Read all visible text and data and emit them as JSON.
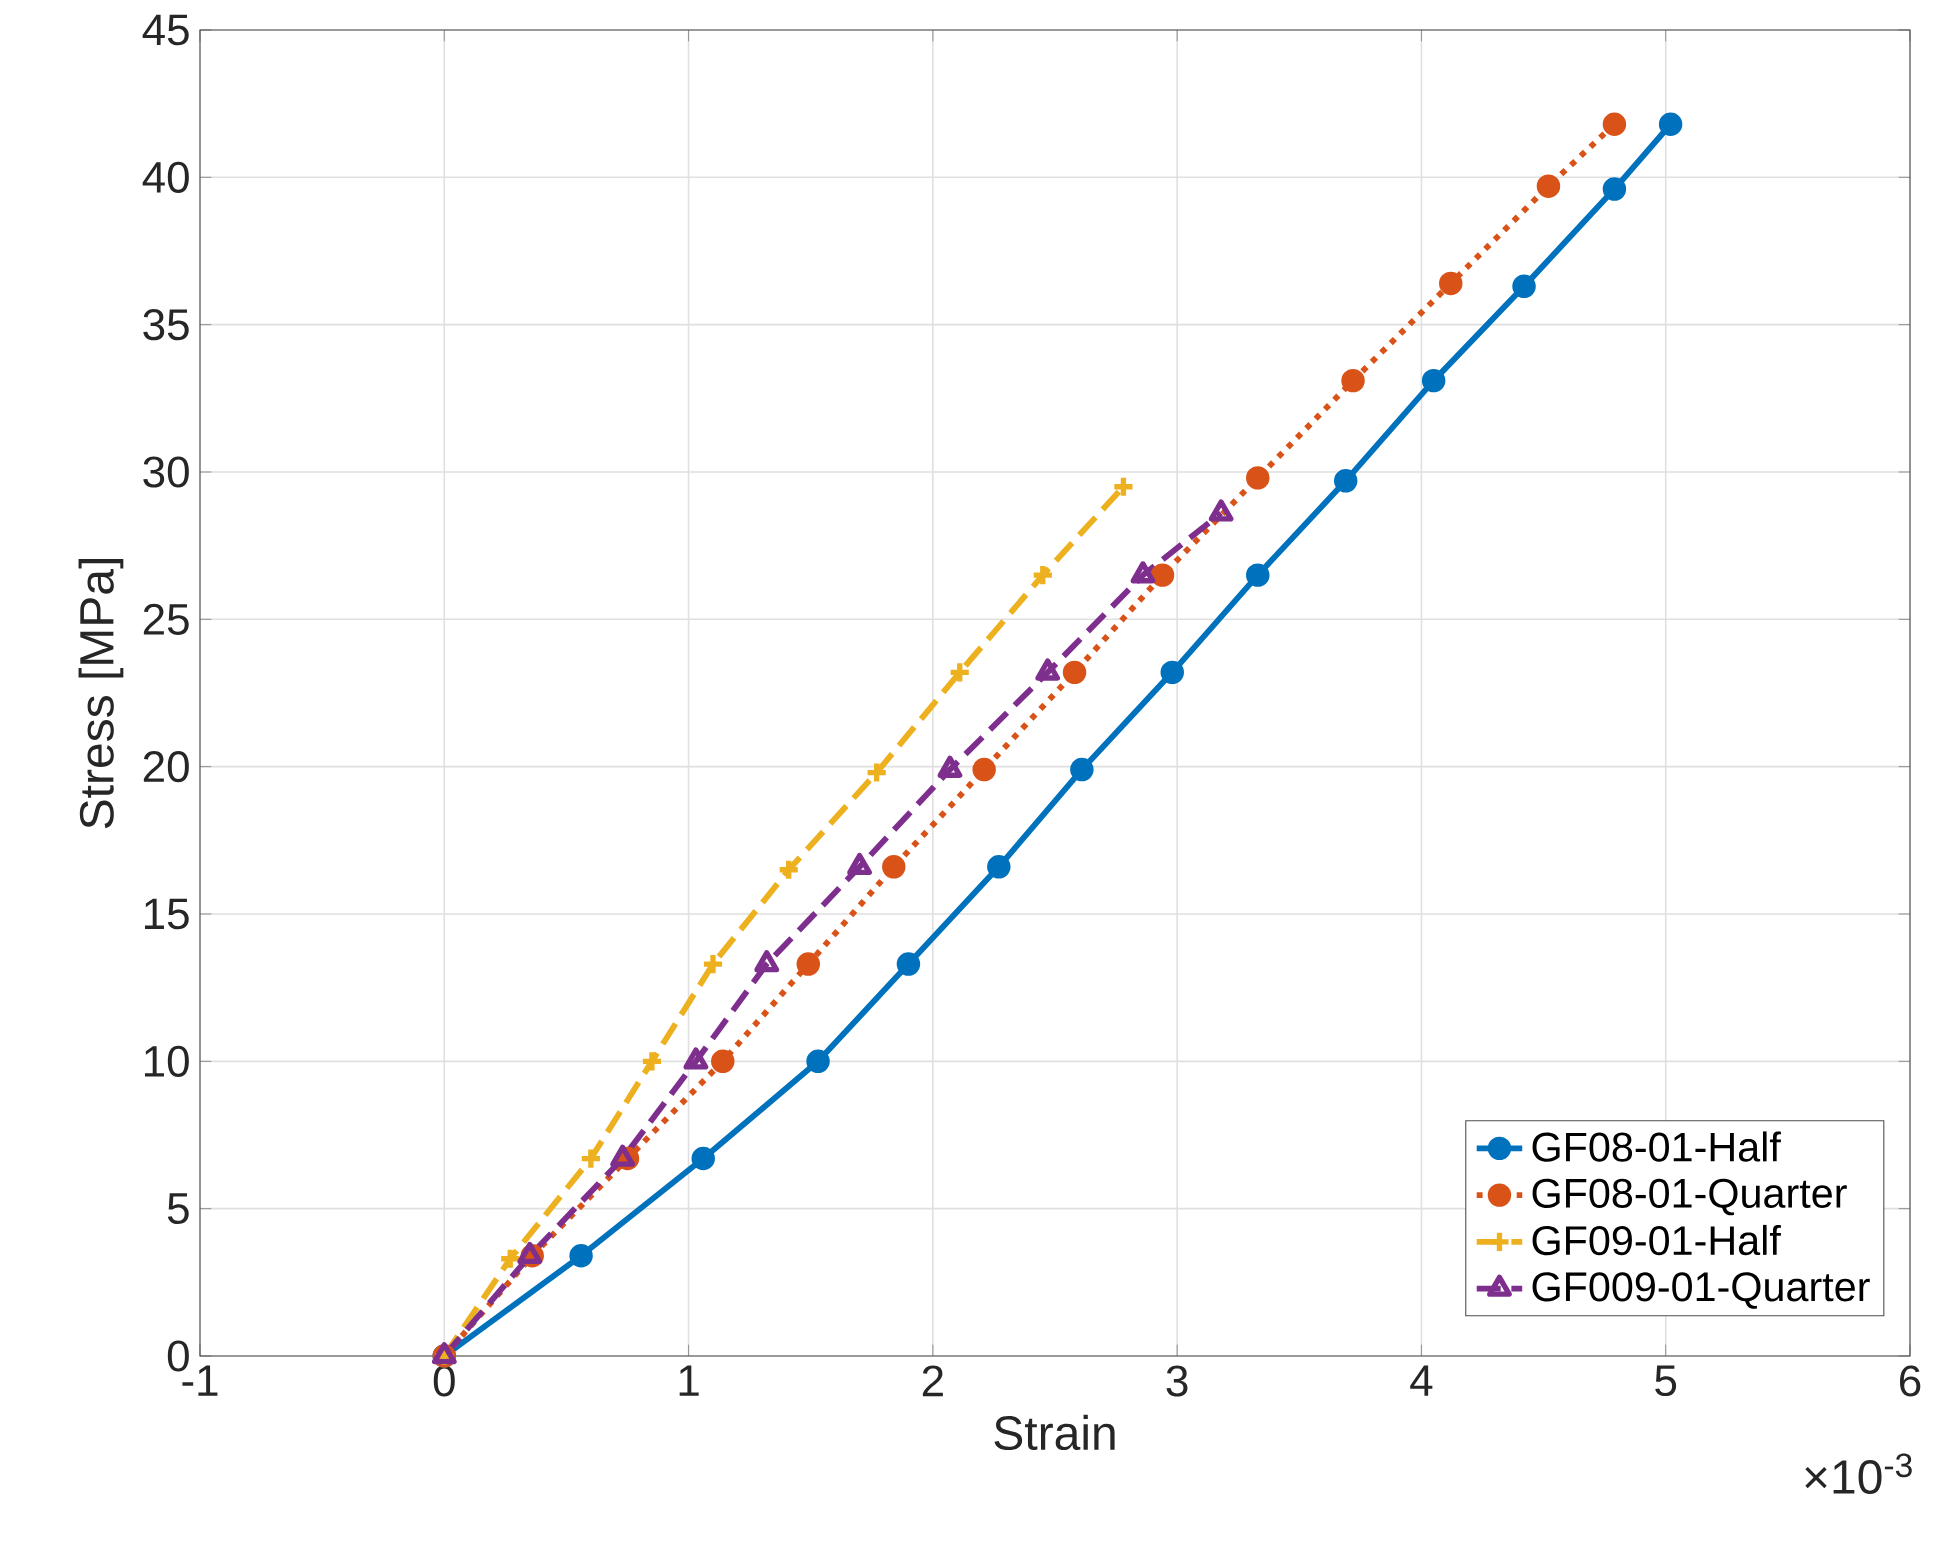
{
  "chart_data": {
    "type": "line",
    "xlabel": "Strain",
    "ylabel": "Stress [MPa]",
    "annotations": [
      "×10$^{-3}$"
    ],
    "xlim": [
      -1,
      6
    ],
    "xticks": [
      -1,
      0,
      1,
      2,
      3,
      4,
      5,
      6
    ],
    "ylim": [
      0,
      45
    ],
    "yticks": [
      0,
      5,
      10,
      15,
      20,
      25,
      30,
      35,
      40,
      45
    ],
    "grid": true,
    "legend": "bottom right",
    "series": [
      {
        "name": "GF08-01-Half",
        "color": "#0072bd",
        "marker": "circle",
        "line_style": "solid",
        "x": [
          0,
          0.56,
          1.06,
          1.53,
          1.9,
          2.27,
          2.61,
          2.98,
          3.33,
          3.69,
          4.05,
          4.42,
          4.79,
          5.02
        ],
        "values": [
          0,
          3.4,
          6.7,
          10.0,
          13.3,
          16.6,
          19.9,
          23.2,
          26.5,
          29.7,
          33.1,
          36.3,
          39.6,
          41.8
        ]
      },
      {
        "name": "GF08-01-Quarter",
        "color": "#d95319",
        "marker": "circle",
        "line_style": "dotted",
        "x": [
          0,
          0.36,
          0.75,
          1.14,
          1.49,
          1.84,
          2.21,
          2.58,
          2.94,
          3.33,
          3.72,
          4.12,
          4.52,
          4.79
        ],
        "values": [
          0,
          3.4,
          6.7,
          10.0,
          13.3,
          16.6,
          19.9,
          23.2,
          26.5,
          29.8,
          33.1,
          36.4,
          39.7,
          41.8
        ]
      },
      {
        "name": "GF09-01-Half",
        "color": "#edb120",
        "marker": "cross",
        "line_style": "dashed",
        "x": [
          0,
          0.27,
          0.6,
          0.85,
          1.1,
          1.41,
          1.77,
          2.11,
          2.45,
          2.78
        ],
        "values": [
          0,
          3.3,
          6.7,
          10.0,
          13.3,
          16.5,
          19.8,
          23.2,
          26.5,
          29.5
        ]
      },
      {
        "name": "GF009-01-Quarter",
        "color": "#7e2f8e",
        "marker": "triangle",
        "line_style": "dashed",
        "x": [
          0,
          0.35,
          0.73,
          1.03,
          1.32,
          1.7,
          2.07,
          2.47,
          2.86,
          3.18
        ],
        "values": [
          0,
          3.4,
          6.7,
          10.0,
          13.3,
          16.6,
          19.9,
          23.2,
          26.5,
          28.6
        ]
      }
    ]
  }
}
